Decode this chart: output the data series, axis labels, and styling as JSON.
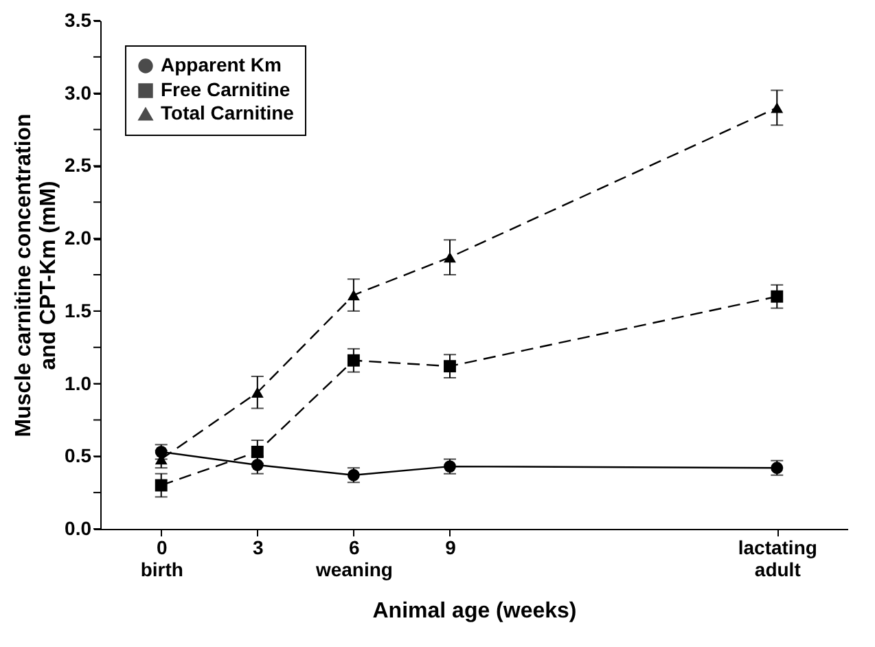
{
  "chart_data": {
    "type": "line",
    "xlabel": "Animal age (weeks)",
    "ylabel": "Muscle carnitine concentration\nand CPT-Km (mM)",
    "x": [
      0,
      3,
      6,
      9,
      19.2
    ],
    "series": [
      {
        "name": "Apparent Km",
        "color": "#000000",
        "marker": "circle",
        "line_style": "solid",
        "values": [
          0.53,
          0.44,
          0.37,
          0.43,
          0.42
        ],
        "errors": [
          0.05,
          0.06,
          0.05,
          0.05,
          0.05
        ]
      },
      {
        "name": "Free Carnitine",
        "color": "#000000",
        "marker": "square",
        "line_style": "dashed",
        "values": [
          0.3,
          0.53,
          1.16,
          1.12,
          1.6
        ],
        "errors": [
          0.08,
          0.08,
          0.08,
          0.08,
          0.08
        ]
      },
      {
        "name": "Total Carnitine",
        "color": "#000000",
        "marker": "triangle",
        "line_style": "dashed",
        "values": [
          0.48,
          0.94,
          1.61,
          1.87,
          2.9
        ],
        "errors": [
          0.06,
          0.11,
          0.11,
          0.12,
          0.12
        ]
      }
    ],
    "xlim": [
      -1.9,
      21.4
    ],
    "xticks": [
      {
        "value": 0,
        "label": "0\nbirth"
      },
      3,
      {
        "value": 6,
        "label": "6\nweaning"
      },
      9,
      {
        "value": 19.2,
        "label": "lactating\nadult"
      }
    ],
    "ylim": [
      0,
      3.5
    ],
    "yticks": [
      {
        "value": 0,
        "label": "0.0"
      },
      {
        "value": 0.25,
        "label": null
      },
      {
        "value": 0.5,
        "label": "0.5"
      },
      {
        "value": 0.75,
        "label": null
      },
      {
        "value": 1,
        "label": "1.0"
      },
      {
        "value": 1.25,
        "label": null
      },
      {
        "value": 1.5,
        "label": "1.5"
      },
      {
        "value": 1.75,
        "label": null
      },
      {
        "value": 2,
        "label": "2.0"
      },
      {
        "value": 2.25,
        "label": null
      },
      {
        "value": 2.5,
        "label": "2.5"
      },
      {
        "value": 2.75,
        "label": null
      },
      {
        "value": 3,
        "label": "3.0"
      },
      {
        "value": 3.25,
        "label": null
      },
      {
        "value": 3.5,
        "label": "3.5"
      }
    ],
    "grid": false,
    "legend": "top left"
  }
}
